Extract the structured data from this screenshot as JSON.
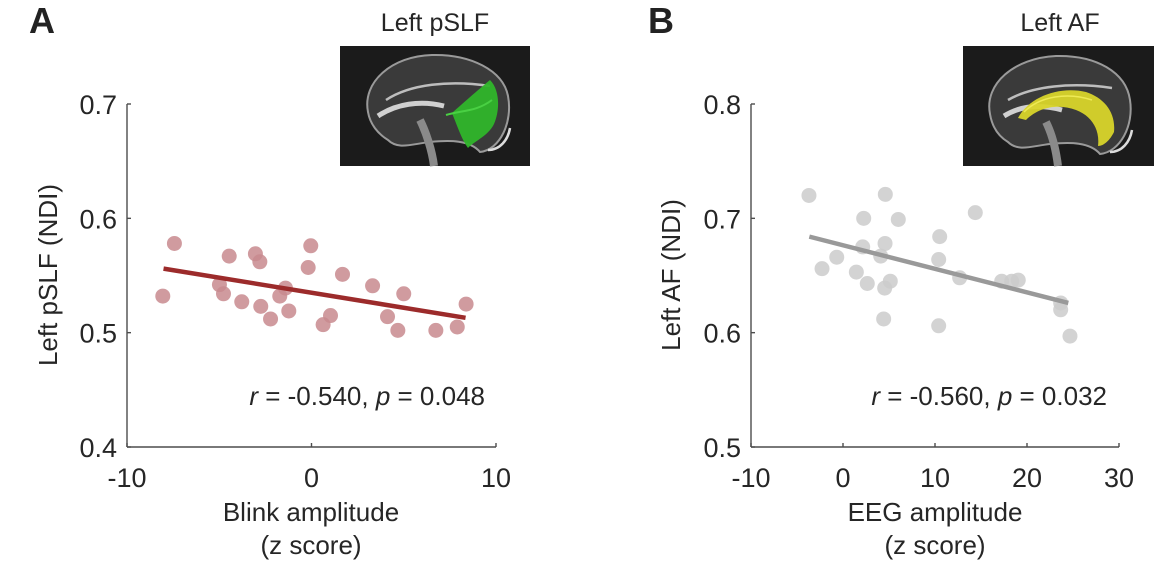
{
  "colors": {
    "panel_a_dot": "#c88a8e",
    "panel_a_line": "#9c2b2b",
    "panel_b_dot": "#cbcbcb",
    "panel_b_line": "#999999",
    "inset_a_tract": "#2fb52a",
    "inset_b_tract": "#d8d42a"
  },
  "chart_data": [
    {
      "type": "scatter",
      "panel_label": "A",
      "inset_title": "Left pSLF",
      "xlabel": [
        "Blink amplitude",
        "(z score)"
      ],
      "ylabel": "Left pSLF (NDI)",
      "xlim": [
        -10,
        10
      ],
      "ylim": [
        0.4,
        0.7
      ],
      "xticks": [
        -10,
        0,
        10
      ],
      "xtick_labels": [
        "-10",
        "0",
        "10"
      ],
      "yticks": [
        0.4,
        0.5,
        0.6,
        0.7
      ],
      "ytick_labels": [
        "0.4",
        "0.5",
        "0.6",
        "0.7"
      ],
      "grid": false,
      "annotation": {
        "r_symbol": "r",
        "r_text": " = -0.540, ",
        "p_symbol": "p",
        "p_text": " = 0.048"
      },
      "fit_line": {
        "x": [
          -8.02,
          8.35
        ],
        "y": [
          0.556,
          0.513
        ]
      },
      "points": {
        "x": [
          -8.06,
          -7.43,
          -4.46,
          -4.99,
          -4.77,
          -3.78,
          -3.04,
          -2.8,
          -2.75,
          -2.22,
          -1.41,
          -1.72,
          -1.23,
          -0.04,
          -0.18,
          1.68,
          3.31,
          5.0,
          1.03,
          0.63,
          4.12,
          4.68,
          6.74,
          7.9,
          8.38
        ],
        "y": [
          0.532,
          0.578,
          0.567,
          0.542,
          0.534,
          0.527,
          0.569,
          0.562,
          0.523,
          0.512,
          0.539,
          0.532,
          0.519,
          0.576,
          0.557,
          0.551,
          0.541,
          0.534,
          0.515,
          0.507,
          0.514,
          0.502,
          0.502,
          0.505,
          0.525
        ]
      }
    },
    {
      "type": "scatter",
      "panel_label": "B",
      "inset_title": "Left AF",
      "xlabel": [
        "EEG amplitude",
        "(z score)"
      ],
      "ylabel": "Left AF (NDI)",
      "xlim": [
        -10,
        30
      ],
      "ylim": [
        0.5,
        0.8
      ],
      "xticks": [
        -10,
        0,
        10,
        20,
        30
      ],
      "xtick_labels": [
        "-10",
        "0",
        "10",
        "20",
        "30"
      ],
      "yticks": [
        0.5,
        0.6,
        0.7,
        0.8
      ],
      "ytick_labels": [
        "0.5",
        "0.6",
        "0.7",
        "0.8"
      ],
      "grid": false,
      "annotation": {
        "r_symbol": "r",
        "r_text": " = -0.560, ",
        "p_symbol": "p",
        "p_text": " = 0.032"
      },
      "fit_line": {
        "x": [
          -3.66,
          24.49
        ],
        "y": [
          0.684,
          0.626
        ]
      },
      "points": {
        "x": [
          -3.7,
          4.6,
          2.25,
          6.01,
          10.51,
          2.14,
          4.57,
          4.1,
          -0.68,
          -2.28,
          1.45,
          2.64,
          5.14,
          4.53,
          10.4,
          4.42,
          10.4,
          14.38,
          12.68,
          17.25,
          18.34,
          19.05,
          23.66,
          23.66,
          24.67
        ],
        "y": [
          0.72,
          0.721,
          0.7,
          0.699,
          0.684,
          0.675,
          0.678,
          0.667,
          0.666,
          0.656,
          0.653,
          0.643,
          0.645,
          0.639,
          0.664,
          0.612,
          0.606,
          0.705,
          0.648,
          0.645,
          0.645,
          0.646,
          0.626,
          0.62,
          0.597
        ]
      }
    }
  ]
}
